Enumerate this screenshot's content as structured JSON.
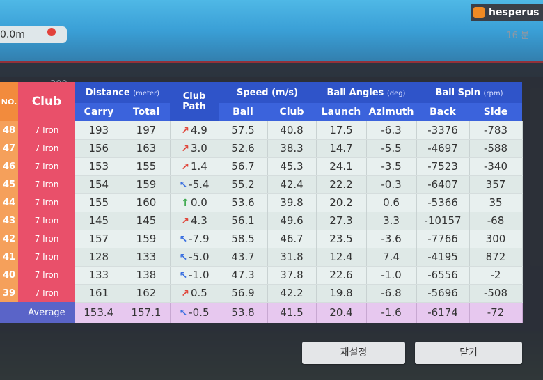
{
  "top": {
    "distance_text": "0.0m",
    "user_name": "hesperus",
    "top_right_hint": "16 분"
  },
  "table": {
    "headers": {
      "no": "NO.",
      "club": "Club",
      "distance": "Distance",
      "distance_unit": "(meter)",
      "carry": "Carry",
      "total": "Total",
      "club_path": "Club Path",
      "speed": "Speed (m/s)",
      "speed_ball": "Ball",
      "speed_club": "Club",
      "ball_angles": "Ball Angles",
      "ball_angles_unit": "(deg)",
      "launch": "Launch",
      "azimuth": "Azimuth",
      "ball_spin": "Ball Spin",
      "ball_spin_unit": "(rpm)",
      "back": "Back",
      "side": "Side"
    },
    "faded_top_value": "300",
    "rows": [
      {
        "no": "48",
        "club": "7 Iron",
        "carry": "193",
        "total": "197",
        "path": "4.9",
        "path_dir": "right",
        "speed_ball": "57.5",
        "speed_club": "40.8",
        "launch": "17.5",
        "azimuth": "-6.3",
        "back": "-3376",
        "side": "-783"
      },
      {
        "no": "47",
        "club": "7 Iron",
        "carry": "156",
        "total": "163",
        "path": "3.0",
        "path_dir": "right",
        "speed_ball": "52.6",
        "speed_club": "38.3",
        "launch": "14.7",
        "azimuth": "-5.5",
        "back": "-4697",
        "side": "-588"
      },
      {
        "no": "46",
        "club": "7 Iron",
        "carry": "153",
        "total": "155",
        "path": "1.4",
        "path_dir": "right",
        "speed_ball": "56.7",
        "speed_club": "45.3",
        "launch": "24.1",
        "azimuth": "-3.5",
        "back": "-7523",
        "side": "-340"
      },
      {
        "no": "45",
        "club": "7 Iron",
        "carry": "154",
        "total": "159",
        "path": "-5.4",
        "path_dir": "left",
        "speed_ball": "55.2",
        "speed_club": "42.4",
        "launch": "22.2",
        "azimuth": "-0.3",
        "back": "-6407",
        "side": "357"
      },
      {
        "no": "44",
        "club": "7 Iron",
        "carry": "155",
        "total": "160",
        "path": "0.0",
        "path_dir": "straight",
        "speed_ball": "53.6",
        "speed_club": "39.8",
        "launch": "20.2",
        "azimuth": "0.6",
        "back": "-5366",
        "side": "35"
      },
      {
        "no": "43",
        "club": "7 Iron",
        "carry": "145",
        "total": "145",
        "path": "4.3",
        "path_dir": "right",
        "speed_ball": "56.1",
        "speed_club": "49.6",
        "launch": "27.3",
        "azimuth": "3.3",
        "back": "-10157",
        "side": "-68"
      },
      {
        "no": "42",
        "club": "7 Iron",
        "carry": "157",
        "total": "159",
        "path": "-7.9",
        "path_dir": "left",
        "speed_ball": "58.5",
        "speed_club": "46.7",
        "launch": "23.5",
        "azimuth": "-3.6",
        "back": "-7766",
        "side": "300"
      },
      {
        "no": "41",
        "club": "7 Iron",
        "carry": "128",
        "total": "133",
        "path": "-5.0",
        "path_dir": "left",
        "speed_ball": "43.7",
        "speed_club": "31.8",
        "launch": "12.4",
        "azimuth": "7.4",
        "back": "-4195",
        "side": "872"
      },
      {
        "no": "40",
        "club": "7 Iron",
        "carry": "133",
        "total": "138",
        "path": "-1.0",
        "path_dir": "left",
        "speed_ball": "47.3",
        "speed_club": "37.8",
        "launch": "22.6",
        "azimuth": "-1.0",
        "back": "-6556",
        "side": "-2"
      },
      {
        "no": "39",
        "club": "7 Iron",
        "carry": "161",
        "total": "162",
        "path": "0.5",
        "path_dir": "right",
        "speed_ball": "56.9",
        "speed_club": "42.2",
        "launch": "19.8",
        "azimuth": "-6.8",
        "back": "-5696",
        "side": "-508"
      }
    ],
    "average": {
      "label": "Average",
      "carry": "153.4",
      "total": "157.1",
      "path": "-0.5",
      "path_dir": "left",
      "speed_ball": "53.8",
      "speed_club": "41.5",
      "launch": "20.4",
      "azimuth": "-1.6",
      "back": "-6174",
      "side": "-72"
    }
  },
  "buttons": {
    "reset": "재설정",
    "close": "닫기"
  },
  "colors": {
    "header_blue": "#2f54c9",
    "club_red": "#e9506a",
    "no_orange": "#f5a05b",
    "avg_purple": "#e7c8ef",
    "arrow_right": "#e0463a",
    "arrow_left": "#3a6fe0",
    "arrow_straight": "#3aa84a"
  }
}
